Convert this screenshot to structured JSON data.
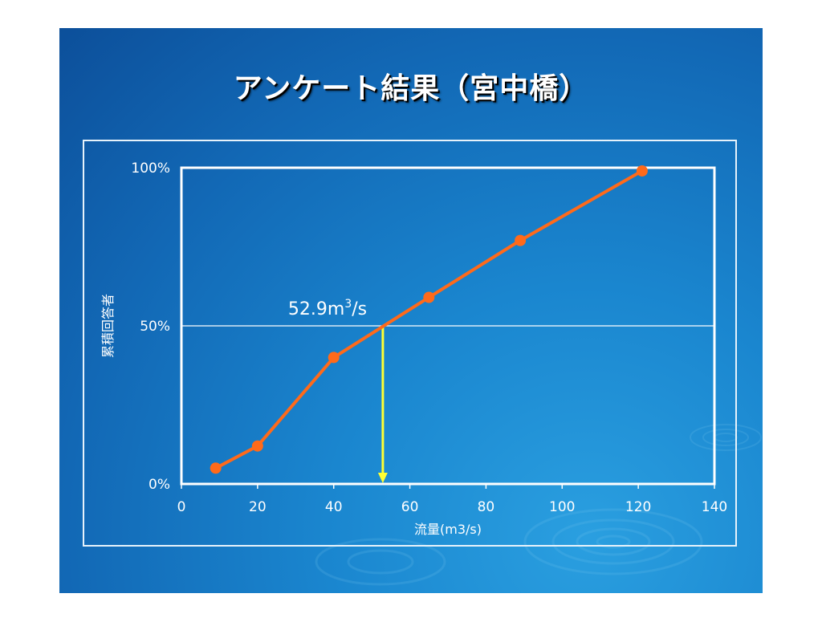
{
  "slide": {
    "title": "アンケート結果（宮中橋）"
  },
  "chart_data": {
    "type": "line",
    "x": [
      9,
      20,
      40,
      65,
      89,
      121
    ],
    "series": [
      {
        "values": [
          0.05,
          0.12,
          0.4,
          0.59,
          0.77,
          0.99
        ]
      }
    ],
    "xlim": [
      0,
      140
    ],
    "ylim": [
      0,
      1
    ],
    "x_ticks": [
      0,
      20,
      40,
      60,
      80,
      100,
      120,
      140
    ],
    "x_tick_labels": [
      "0",
      "20",
      "40",
      "60",
      "80",
      "100",
      "120",
      "140"
    ],
    "y_ticks": [
      0,
      0.5,
      1
    ],
    "y_tick_labels": [
      "0%",
      "50%",
      "100%"
    ],
    "xlabel": "流量(m3/s)",
    "ylabel": "累積回答者",
    "grid": "horizontal at 50%",
    "legend": "none",
    "annotation": {
      "x": 52.9,
      "y": 0.5,
      "text_main": "52.9m",
      "text_sup": "3",
      "text_tail": "/s"
    },
    "colors": {
      "series": "#ff6a1a",
      "arrow": "#ffff33",
      "axes": "#ffffff"
    }
  }
}
